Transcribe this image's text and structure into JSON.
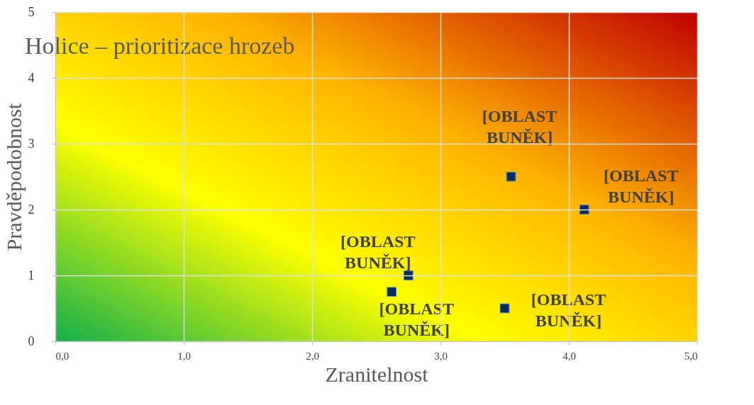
{
  "chart_data": {
    "type": "scatter",
    "title": "Holice – prioritizace hrozeb",
    "xlabel": "Zranitelnost",
    "ylabel": "Pravděpodobnost",
    "x": [
      2.62,
      2.75,
      3.5,
      3.55,
      4.12
    ],
    "series": [
      {
        "color": "#0a2a66",
        "values": [
          0.75,
          1.0,
          0.5,
          2.5,
          2.0
        ],
        "value_labels": [
          "[OBLAST BUNĚK]",
          "[OBLAST BUNĚK]",
          "[OBLAST BUNĚK]",
          "[OBLAST BUNĚK]",
          "[OBLAST BUNĚK]"
        ]
      }
    ],
    "xlim": [
      0,
      5
    ],
    "xticks": [
      {
        "value": 0,
        "label": "0,0"
      },
      {
        "value": 1,
        "label": "1,0"
      },
      {
        "value": 2,
        "label": "2,0"
      },
      {
        "value": 3,
        "label": "3,0"
      },
      {
        "value": 4,
        "label": "4,0"
      },
      {
        "value": 5,
        "label": "5,0"
      }
    ],
    "ylim": [
      0,
      5
    ],
    "yticks": [
      0,
      1,
      2,
      3,
      4,
      5
    ],
    "grid": true,
    "legend": false,
    "marker": "square"
  }
}
